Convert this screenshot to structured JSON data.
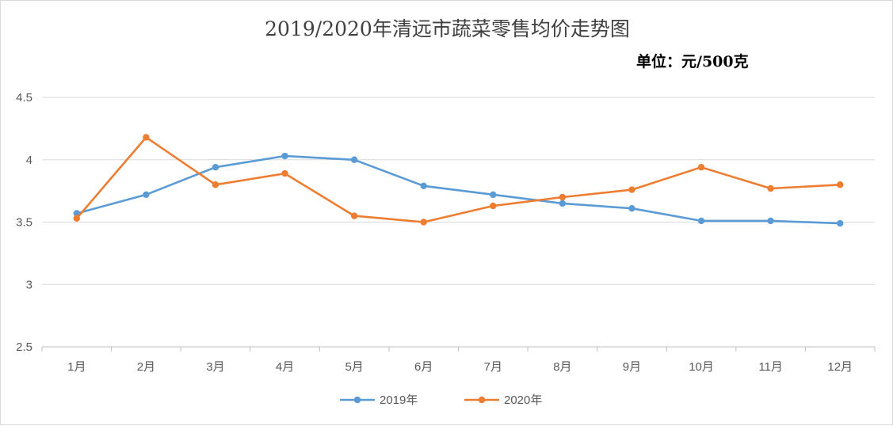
{
  "chart_data": {
    "type": "line",
    "title": "2019/2020年清远市蔬菜零售均价走势图",
    "unit_label": "单位：元/500克",
    "categories": [
      "1月",
      "2月",
      "3月",
      "4月",
      "5月",
      "6月",
      "7月",
      "8月",
      "9月",
      "10月",
      "11月",
      "12月"
    ],
    "series": [
      {
        "name": "2019年",
        "color": "#5b9bd5",
        "values": [
          3.57,
          3.72,
          3.94,
          4.03,
          4.0,
          3.79,
          3.72,
          3.65,
          3.61,
          3.51,
          3.51,
          3.49
        ]
      },
      {
        "name": "2020年",
        "color": "#ed7d31",
        "values": [
          3.53,
          4.18,
          3.8,
          3.89,
          3.55,
          3.5,
          3.63,
          3.7,
          3.76,
          3.94,
          3.77,
          3.8
        ]
      }
    ],
    "ylim": [
      2.5,
      4.5
    ],
    "yticks": [
      "2.5",
      "3",
      "3.5",
      "4",
      "4.5"
    ],
    "ytick_values": [
      2.5,
      3,
      3.5,
      4,
      4.5
    ],
    "grid": true,
    "legend_position": "bottom"
  }
}
